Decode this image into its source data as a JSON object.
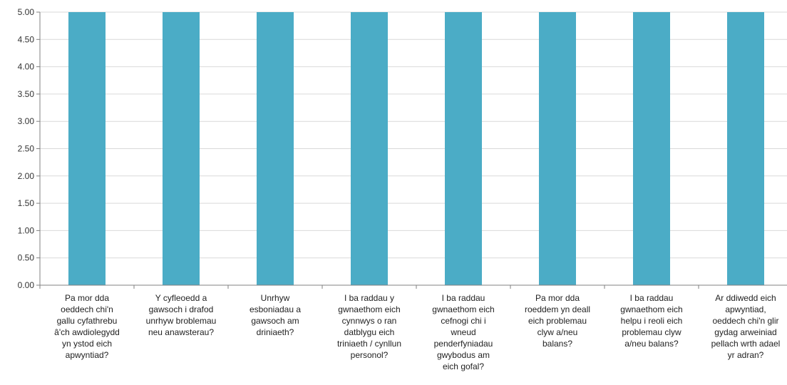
{
  "chart_data": {
    "type": "bar",
    "categories": [
      "Pa mor dda oeddech chi'n gallu cyfathrebu â'ch awdiolegydd yn ystod eich apwyntiad?",
      "Y cyfleoedd a gawsoch i drafod unrhyw broblemau neu anawsterau?",
      "Unrhyw esboniadau a gawsoch am driniaeth?",
      "I ba raddau y gwnaethom eich cynnwys o ran datblygu eich triniaeth / cynllun personol?",
      "I ba raddau gwnaethom eich cefnogi chi i wneud penderfyniadau gwybodus am eich gofal?",
      "Pa mor dda roeddem yn deall eich problemau clyw a/neu balans?",
      "I ba raddau gwnaethom eich helpu i reoli eich problemau clyw a/neu balans?",
      "Ar ddiwedd eich apwyntiad, oeddech chi'n glir gydag arweiniad pellach wrth adael yr adran?"
    ],
    "category_lines": [
      [
        "Pa mor dda",
        "oeddech chi'n",
        "gallu cyfathrebu",
        "â'ch awdiolegydd",
        "yn ystod eich",
        "apwyntiad?"
      ],
      [
        "Y cyfleoedd a",
        "gawsoch i drafod",
        "unrhyw broblemau",
        "neu anawsterau?"
      ],
      [
        "Unrhyw",
        "esboniadau a",
        "gawsoch am",
        "driniaeth?"
      ],
      [
        "I ba raddau y",
        "gwnaethom eich",
        "cynnwys o ran",
        "datblygu eich",
        "triniaeth / cynllun",
        "personol?"
      ],
      [
        "I ba raddau",
        "gwnaethom eich",
        "cefnogi chi i",
        "wneud",
        "penderfyniadau",
        "gwybodus am",
        "eich gofal?"
      ],
      [
        "Pa mor dda",
        "roeddem yn deall",
        "eich problemau",
        "clyw a/neu",
        "balans?"
      ],
      [
        "I ba raddau",
        "gwnaethom eich",
        "helpu i reoli eich",
        "problemau clyw",
        "a/neu balans?"
      ],
      [
        "Ar ddiwedd eich",
        "apwyntiad,",
        "oeddech chi'n glir",
        "gydag arweiniad",
        "pellach wrth adael",
        "yr adran?"
      ]
    ],
    "values": [
      5,
      5,
      5,
      5,
      5,
      5,
      5,
      5
    ],
    "ylim": [
      0,
      5
    ],
    "yticks": [
      "0.00",
      "0.50",
      "1.00",
      "1.50",
      "2.00",
      "2.50",
      "3.00",
      "3.50",
      "4.00",
      "4.50",
      "5.00"
    ],
    "grid": true,
    "legend": "none",
    "colors": {
      "bar": "#4BACC6",
      "grid": "#D9D9D9",
      "axis": "#808080"
    }
  }
}
